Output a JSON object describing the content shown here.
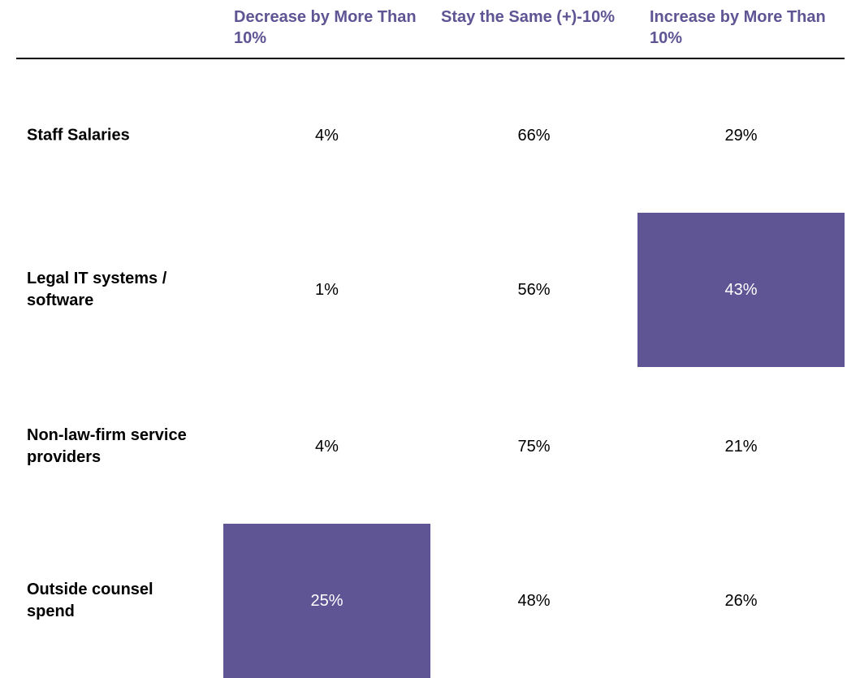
{
  "table": {
    "columns": [
      "Decrease by More Than 10%",
      "Stay the Same (+)-10%",
      "Increase by More Than 10%"
    ],
    "rows": [
      {
        "label": "Staff Salaries",
        "cells": [
          "4%",
          "66%",
          "29%"
        ]
      },
      {
        "label": "Legal IT systems / software",
        "cells": [
          "1%",
          "56%",
          "43%"
        ]
      },
      {
        "label": "Non-law-firm service providers",
        "cells": [
          "4%",
          "75%",
          "21%"
        ]
      },
      {
        "label": "Outside counsel spend",
        "cells": [
          "25%",
          "48%",
          "26%"
        ]
      }
    ],
    "highlighted": [
      [
        1,
        2
      ],
      [
        3,
        0
      ]
    ],
    "highlight_color": "#5f5494",
    "header_color": "#5f5494"
  }
}
